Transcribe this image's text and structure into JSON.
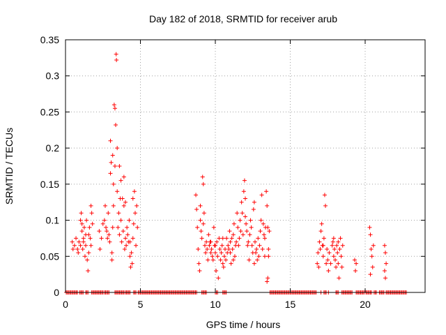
{
  "chart_data": {
    "type": "scatter",
    "title": "Day 182 of 2018, SRMTID for receiver arub",
    "xlabel": "GPS time / hours",
    "ylabel": "SRMTID / TECUs",
    "xlim": [
      0,
      24
    ],
    "ylim": [
      0,
      0.35
    ],
    "xticks": [
      0,
      5,
      10,
      15,
      20
    ],
    "xtick_labels": [
      "0",
      "5",
      "10",
      "15",
      "20"
    ],
    "yticks": [
      0,
      0.05,
      0.1,
      0.15,
      0.2,
      0.25,
      0.3,
      0.35
    ],
    "ytick_labels": [
      "0",
      "0.05",
      "0.1",
      "0.15",
      "0.2",
      "0.25",
      "0.3",
      "0.35"
    ],
    "grid": true,
    "marker": "plus",
    "color": "#ff0000",
    "series": [
      {
        "name": "SRMTID",
        "points": [
          [
            0.45,
            0.07
          ],
          [
            0.5,
            0.06
          ],
          [
            0.6,
            0.065
          ],
          [
            0.7,
            0.075
          ],
          [
            0.8,
            0.06
          ],
          [
            0.85,
            0.055
          ],
          [
            0.9,
            0.07
          ],
          [
            1.0,
            0.065
          ],
          [
            1.0,
            0.1
          ],
          [
            1.05,
            0.11
          ],
          [
            1.1,
            0.095
          ],
          [
            1.15,
            0.06
          ],
          [
            1.2,
            0.075
          ],
          [
            1.25,
            0.09
          ],
          [
            1.3,
            0.05
          ],
          [
            1.35,
            0.065
          ],
          [
            1.4,
            0.1
          ],
          [
            1.45,
            0.045
          ],
          [
            1.5,
            0.03
          ],
          [
            1.55,
            0.08
          ],
          [
            1.6,
            0.09
          ],
          [
            1.65,
            0.075
          ],
          [
            1.7,
            0.12
          ],
          [
            1.75,
            0.11
          ],
          [
            1.8,
            0.095
          ],
          [
            1.7,
            0.065
          ],
          [
            1.55,
            0.055
          ],
          [
            1.35,
            0.08
          ],
          [
            1.2,
            0.07
          ],
          [
            1.1,
            0.085
          ],
          [
            2.25,
            0.085
          ],
          [
            2.3,
            0.06
          ],
          [
            2.4,
            0.075
          ],
          [
            2.5,
            0.095
          ],
          [
            2.6,
            0.1
          ],
          [
            2.65,
            0.12
          ],
          [
            2.7,
            0.09
          ],
          [
            2.8,
            0.075
          ],
          [
            2.85,
            0.11
          ],
          [
            2.9,
            0.08
          ],
          [
            2.95,
            0.07
          ],
          [
            3.0,
            0.21
          ],
          [
            3.0,
            0.165
          ],
          [
            3.05,
            0.18
          ],
          [
            3.1,
            0.045
          ],
          [
            3.1,
            0.055
          ],
          [
            3.15,
            0.19
          ],
          [
            3.2,
            0.15
          ],
          [
            3.2,
            0.12
          ],
          [
            3.25,
            0.26
          ],
          [
            3.3,
            0.255
          ],
          [
            3.35,
            0.232
          ],
          [
            3.38,
            0.33
          ],
          [
            3.4,
            0.322
          ],
          [
            3.45,
            0.2
          ],
          [
            3.45,
            0.14
          ],
          [
            3.5,
            0.09
          ],
          [
            3.55,
            0.11
          ],
          [
            3.6,
            0.175
          ],
          [
            3.65,
            0.13
          ],
          [
            3.7,
            0.1
          ],
          [
            3.75,
            0.07
          ],
          [
            3.8,
            0.13
          ],
          [
            3.85,
            0.085
          ],
          [
            3.9,
            0.12
          ],
          [
            3.95,
            0.06
          ],
          [
            4.0,
            0.075
          ],
          [
            4.05,
            0.065
          ],
          [
            4.1,
            0.09
          ],
          [
            4.15,
            0.08
          ],
          [
            4.2,
            0.07
          ],
          [
            4.25,
            0.1
          ],
          [
            4.3,
            0.05
          ],
          [
            4.35,
            0.035
          ],
          [
            4.4,
            0.055
          ],
          [
            4.45,
            0.04
          ],
          [
            4.5,
            0.075
          ],
          [
            4.55,
            0.095
          ],
          [
            4.6,
            0.14
          ],
          [
            4.65,
            0.11
          ],
          [
            4.7,
            0.065
          ],
          [
            4.75,
            0.12
          ],
          [
            4.8,
            0.09
          ],
          [
            4.5,
            0.13
          ],
          [
            4.3,
            0.07
          ],
          [
            3.7,
            0.155
          ],
          [
            3.9,
            0.16
          ],
          [
            3.3,
            0.175
          ],
          [
            3.15,
            0.09
          ],
          [
            2.75,
            0.085
          ],
          [
            3.6,
            0.08
          ],
          [
            4.0,
            0.125
          ],
          [
            8.7,
            0.135
          ],
          [
            8.75,
            0.115
          ],
          [
            8.8,
            0.09
          ],
          [
            8.85,
            0.06
          ],
          [
            8.9,
            0.04
          ],
          [
            8.95,
            0.03
          ],
          [
            9.0,
            0.1
          ],
          [
            9.05,
            0.085
          ],
          [
            9.1,
            0.075
          ],
          [
            9.15,
            0.16
          ],
          [
            9.2,
            0.15
          ],
          [
            9.25,
            0.11
          ],
          [
            9.3,
            0.065
          ],
          [
            9.35,
            0.055
          ],
          [
            9.4,
            0.07
          ],
          [
            9.45,
            0.06
          ],
          [
            9.5,
            0.045
          ],
          [
            9.55,
            0.08
          ],
          [
            9.6,
            0.065
          ],
          [
            9.65,
            0.07
          ],
          [
            9.7,
            0.055
          ],
          [
            9.75,
            0.06
          ],
          [
            9.8,
            0.05
          ],
          [
            9.85,
            0.045
          ],
          [
            9.9,
            0.09
          ],
          [
            9.95,
            0.065
          ],
          [
            10.0,
            0.055
          ],
          [
            10.05,
            0.03
          ],
          [
            10.1,
            0.07
          ],
          [
            10.15,
            0.05
          ],
          [
            10.2,
            0.02
          ],
          [
            10.25,
            0.075
          ],
          [
            10.3,
            0.06
          ],
          [
            10.35,
            0.045
          ],
          [
            10.4,
            0.055
          ],
          [
            10.45,
            0.065
          ],
          [
            10.5,
            0.04
          ],
          [
            10.55,
            0.035
          ],
          [
            10.6,
            0.05
          ],
          [
            10.65,
            0.06
          ],
          [
            10.7,
            0.045
          ],
          [
            10.75,
            0.075
          ],
          [
            10.8,
            0.055
          ],
          [
            10.85,
            0.065
          ],
          [
            10.9,
            0.06
          ],
          [
            10.95,
            0.085
          ],
          [
            11.0,
            0.07
          ],
          [
            11.05,
            0.04
          ],
          [
            11.1,
            0.075
          ],
          [
            11.15,
            0.06
          ],
          [
            11.2,
            0.08
          ],
          [
            11.25,
            0.095
          ],
          [
            11.3,
            0.05
          ],
          [
            11.35,
            0.065
          ],
          [
            11.4,
            0.07
          ],
          [
            11.45,
            0.11
          ],
          [
            11.5,
            0.09
          ],
          [
            11.55,
            0.065
          ],
          [
            11.6,
            0.075
          ],
          [
            11.65,
            0.1
          ],
          [
            11.7,
            0.085
          ],
          [
            11.75,
            0.125
          ],
          [
            11.8,
            0.11
          ],
          [
            11.85,
            0.08
          ],
          [
            11.9,
            0.14
          ],
          [
            11.95,
            0.155
          ],
          [
            12.0,
            0.13
          ],
          [
            12.05,
            0.095
          ],
          [
            12.1,
            0.085
          ],
          [
            12.15,
            0.065
          ],
          [
            12.2,
            0.07
          ],
          [
            12.25,
            0.045
          ],
          [
            12.3,
            0.08
          ],
          [
            12.35,
            0.1
          ],
          [
            12.4,
            0.09
          ],
          [
            12.45,
            0.065
          ],
          [
            12.5,
            0.055
          ],
          [
            12.55,
            0.115
          ],
          [
            12.6,
            0.125
          ],
          [
            12.65,
            0.07
          ],
          [
            12.7,
            0.055
          ],
          [
            12.75,
            0.06
          ],
          [
            12.8,
            0.045
          ],
          [
            12.85,
            0.075
          ],
          [
            12.9,
            0.05
          ],
          [
            12.95,
            0.065
          ],
          [
            13.0,
            0.085
          ],
          [
            13.05,
            0.1
          ],
          [
            13.1,
            0.135
          ],
          [
            13.15,
            0.06
          ],
          [
            13.2,
            0.095
          ],
          [
            13.25,
            0.08
          ],
          [
            13.3,
            0.075
          ],
          [
            13.35,
            0.09
          ],
          [
            13.4,
            0.14
          ],
          [
            13.45,
            0.12
          ],
          [
            13.5,
            0.09
          ],
          [
            13.55,
            0.05
          ],
          [
            13.6,
            0.085
          ],
          [
            13.5,
            0.02
          ],
          [
            13.45,
            0.015
          ],
          [
            13.55,
            0.06
          ],
          [
            13.3,
            0.05
          ],
          [
            12.0,
            0.105
          ],
          [
            9.2,
            0.095
          ],
          [
            9.0,
            0.12
          ],
          [
            10.5,
            0.075
          ],
          [
            11.0,
            0.055
          ],
          [
            12.6,
            0.04
          ],
          [
            10.0,
            0.065
          ],
          [
            9.7,
            0.07
          ],
          [
            11.2,
            0.045
          ],
          [
            16.8,
            0.04
          ],
          [
            16.85,
            0.055
          ],
          [
            16.9,
            0.035
          ],
          [
            16.95,
            0.07
          ],
          [
            17.0,
            0.06
          ],
          [
            17.05,
            0.085
          ],
          [
            17.1,
            0.095
          ],
          [
            17.15,
            0.065
          ],
          [
            17.2,
            0.05
          ],
          [
            17.25,
            0.075
          ],
          [
            17.3,
            0.135
          ],
          [
            17.35,
            0.12
          ],
          [
            17.4,
            0.04
          ],
          [
            17.45,
            0.06
          ],
          [
            17.5,
            0.045
          ],
          [
            17.55,
            0.03
          ],
          [
            17.6,
            0.055
          ],
          [
            17.7,
            0.04
          ],
          [
            17.8,
            0.065
          ],
          [
            17.85,
            0.07
          ],
          [
            17.9,
            0.05
          ],
          [
            17.95,
            0.06
          ],
          [
            18.0,
            0.045
          ],
          [
            18.05,
            0.035
          ],
          [
            18.1,
            0.065
          ],
          [
            18.15,
            0.055
          ],
          [
            18.2,
            0.04
          ],
          [
            18.25,
            0.02
          ],
          [
            18.3,
            0.06
          ],
          [
            18.35,
            0.075
          ],
          [
            18.4,
            0.05
          ],
          [
            18.45,
            0.035
          ],
          [
            18.5,
            0.065
          ],
          [
            18.2,
            0.07
          ],
          [
            17.9,
            0.075
          ],
          [
            17.2,
            0.065
          ],
          [
            19.3,
            0.045
          ],
          [
            19.35,
            0.03
          ],
          [
            19.4,
            0.04
          ],
          [
            20.3,
            0.09
          ],
          [
            20.35,
            0.08
          ],
          [
            20.4,
            0.06
          ],
          [
            20.45,
            0.05
          ],
          [
            20.5,
            0.035
          ],
          [
            20.55,
            0.065
          ],
          [
            20.35,
            0.025
          ],
          [
            21.3,
            0.065
          ],
          [
            21.35,
            0.055
          ],
          [
            21.4,
            0.04
          ],
          [
            21.3,
            0.03
          ],
          [
            21.35,
            0.02
          ]
        ],
        "zero_segments": [
          [
            0.05,
            0.8
          ],
          [
            0.95,
            1.2
          ],
          [
            1.35,
            1.55
          ],
          [
            1.75,
            2.5
          ],
          [
            2.6,
            2.95
          ],
          [
            3.3,
            3.9
          ],
          [
            4.0,
            4.35
          ],
          [
            4.55,
            4.75
          ],
          [
            4.85,
            8.75
          ],
          [
            9.1,
            9.45
          ],
          [
            10.0,
            10.2
          ],
          [
            10.5,
            10.75
          ],
          [
            13.65,
            16.75
          ],
          [
            17.05,
            17.1
          ],
          [
            17.25,
            17.45
          ],
          [
            17.55,
            17.6
          ],
          [
            18.05,
            18.2
          ],
          [
            18.45,
            19.15
          ],
          [
            19.4,
            19.95
          ],
          [
            20.05,
            20.45
          ],
          [
            20.6,
            20.8
          ],
          [
            20.95,
            21.25
          ],
          [
            21.4,
            22.75
          ]
        ]
      }
    ]
  }
}
